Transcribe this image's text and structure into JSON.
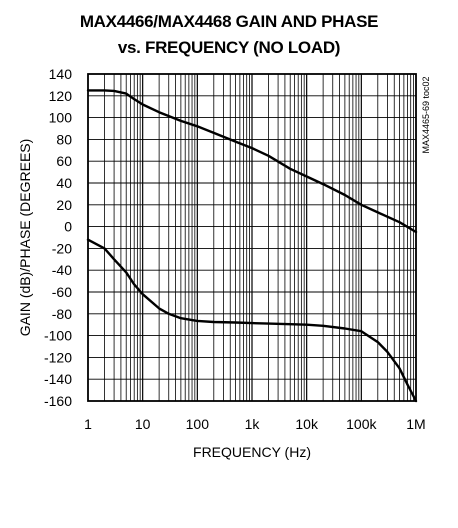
{
  "chart_data": {
    "type": "line",
    "title": "MAX4466/MAX4468 GAIN AND PHASE",
    "subtitle": "vs. FREQUENCY (NO LOAD)",
    "xlabel": "FREQUENCY (Hz)",
    "ylabel": "GAIN (dB)/PHASE (DEGREES)",
    "x_scale": "log",
    "xlim": [
      1,
      1000000
    ],
    "ylim": [
      -160,
      140
    ],
    "x_ticks": [
      {
        "value": 1,
        "label": "1"
      },
      {
        "value": 10,
        "label": "10"
      },
      {
        "value": 100,
        "label": "100"
      },
      {
        "value": 1000,
        "label": "1k"
      },
      {
        "value": 10000,
        "label": "10k"
      },
      {
        "value": 100000,
        "label": "100k"
      },
      {
        "value": 1000000,
        "label": "1M"
      }
    ],
    "y_ticks": [
      {
        "value": 140,
        "label": "140"
      },
      {
        "value": 120,
        "label": "120"
      },
      {
        "value": 100,
        "label": "100"
      },
      {
        "value": 80,
        "label": "80"
      },
      {
        "value": 60,
        "label": "60"
      },
      {
        "value": 40,
        "label": "40"
      },
      {
        "value": 20,
        "label": "20"
      },
      {
        "value": 0,
        "label": "0"
      },
      {
        "value": -20,
        "label": "-20"
      },
      {
        "value": -40,
        "label": "-40"
      },
      {
        "value": -60,
        "label": "-60"
      },
      {
        "value": -80,
        "label": "-80"
      },
      {
        "value": -100,
        "label": "-100"
      },
      {
        "value": -120,
        "label": "-120"
      },
      {
        "value": -140,
        "label": "-140"
      },
      {
        "value": -160,
        "label": "-160"
      }
    ],
    "grid": true,
    "annotation": "MAX4465-69 toc02",
    "series": [
      {
        "x": [
          1,
          2,
          3,
          5,
          7,
          10,
          20,
          50,
          100,
          200,
          500,
          1000,
          2000,
          5000,
          10000,
          20000,
          50000,
          100000,
          200000,
          500000,
          1000000
        ],
        "y": [
          125,
          125,
          124.5,
          122,
          117,
          112,
          105,
          97,
          92,
          86,
          78,
          72,
          65,
          53,
          46,
          39,
          29,
          20,
          13,
          4,
          -5
        ]
      },
      {
        "x": [
          1,
          2,
          3,
          5,
          7,
          10,
          20,
          30,
          50,
          100,
          200,
          500,
          1000,
          2000,
          5000,
          10000,
          20000,
          50000,
          100000,
          200000,
          300000,
          500000,
          700000,
          1000000
        ],
        "y": [
          -12,
          -20,
          -30,
          -42,
          -53,
          -62,
          -75,
          -80,
          -84,
          -86.5,
          -87.5,
          -88,
          -88.5,
          -89,
          -89.5,
          -90,
          -91,
          -93.5,
          -96,
          -106,
          -115,
          -130,
          -145,
          -160
        ]
      }
    ]
  }
}
